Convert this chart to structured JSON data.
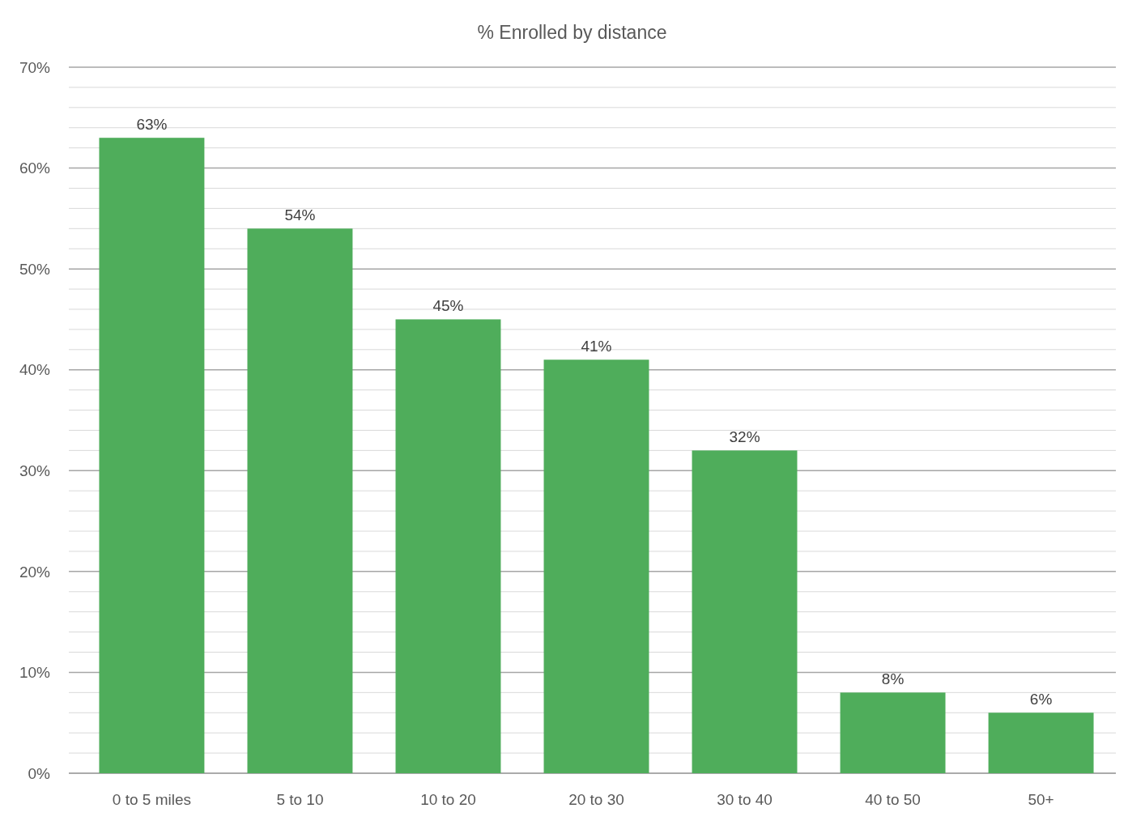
{
  "chart_data": {
    "type": "bar",
    "title": "% Enrolled by distance",
    "categories": [
      "0 to 5 miles",
      "5 to 10",
      "10 to 20",
      "20 to 30",
      "30 to 40",
      "40 to 50",
      "50+"
    ],
    "values": [
      63,
      54,
      45,
      41,
      32,
      8,
      6
    ],
    "color": "#4fad5b",
    "ylim": [
      0,
      70
    ],
    "yticks": [
      {
        "value": 0,
        "label": "0%"
      },
      {
        "value": 2,
        "label": null
      },
      {
        "value": 4,
        "label": null
      },
      {
        "value": 6,
        "label": null
      },
      {
        "value": 8,
        "label": null
      },
      {
        "value": 10,
        "label": "10%"
      },
      {
        "value": 12,
        "label": null
      },
      {
        "value": 14,
        "label": null
      },
      {
        "value": 16,
        "label": null
      },
      {
        "value": 18,
        "label": null
      },
      {
        "value": 20,
        "label": "20%"
      },
      {
        "value": 22,
        "label": null
      },
      {
        "value": 24,
        "label": null
      },
      {
        "value": 26,
        "label": null
      },
      {
        "value": 28,
        "label": null
      },
      {
        "value": 30,
        "label": "30%"
      },
      {
        "value": 32,
        "label": null
      },
      {
        "value": 34,
        "label": null
      },
      {
        "value": 36,
        "label": null
      },
      {
        "value": 38,
        "label": null
      },
      {
        "value": 40,
        "label": "40%"
      },
      {
        "value": 42,
        "label": null
      },
      {
        "value": 44,
        "label": null
      },
      {
        "value": 46,
        "label": null
      },
      {
        "value": 48,
        "label": null
      },
      {
        "value": 50,
        "label": "50%"
      },
      {
        "value": 52,
        "label": null
      },
      {
        "value": 54,
        "label": null
      },
      {
        "value": 56,
        "label": null
      },
      {
        "value": 58,
        "label": null
      },
      {
        "value": 60,
        "label": "60%"
      },
      {
        "value": 62,
        "label": null
      },
      {
        "value": 64,
        "label": null
      },
      {
        "value": 66,
        "label": null
      },
      {
        "value": 68,
        "label": null
      },
      {
        "value": 70,
        "label": "70%"
      }
    ],
    "value_labels": [
      "63%",
      "54%",
      "45%",
      "41%",
      "32%",
      "8%",
      "6%"
    ],
    "grid": "y"
  }
}
